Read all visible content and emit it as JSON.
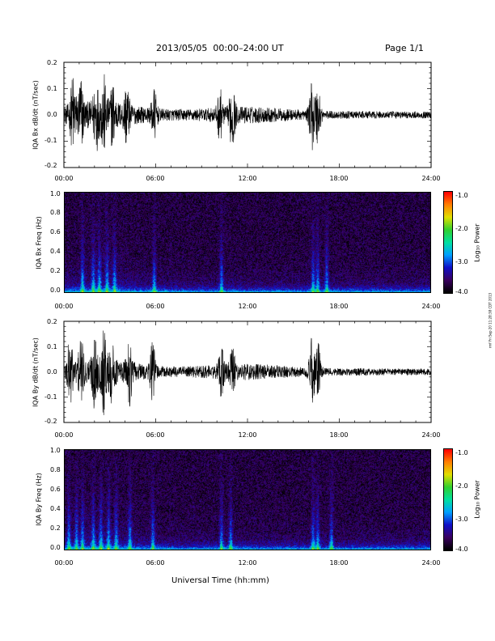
{
  "header": {
    "title": "2013/05/05  00:00–24:00 UT",
    "page": "Page 1/1"
  },
  "footer": {
    "xlabel": "Universal Time (hh:mm)",
    "stamp": "rmf Fri Sep 20 11:28:38 CDT 2013"
  },
  "colorbar": {
    "label": "Log₁₀ Power",
    "ticks": [
      "-1.0",
      "-2.0",
      "-3.0",
      "-4.0"
    ],
    "range": [
      -4.0,
      -1.0
    ],
    "colors": [
      "#000000",
      "#3a0060",
      "#1010c8",
      "#00a0ff",
      "#00e0a0",
      "#30d030",
      "#e0e000",
      "#ff8000",
      "#ff0000"
    ]
  },
  "xticks": [
    "00:00",
    "06:00",
    "12:00",
    "18:00",
    "24:00"
  ],
  "chart_data": [
    {
      "type": "line",
      "ylabel": "IQA Bx dB/dt (nT/sec)",
      "xlim": [
        0,
        24
      ],
      "ylim": [
        -0.2,
        0.2
      ],
      "yticks": [
        "0.2",
        "0.1",
        "0.0",
        "-0.1",
        "-0.2"
      ],
      "bursts": [
        {
          "t": 0.6,
          "amp": 0.22
        },
        {
          "t": 1.1,
          "amp": 0.2
        },
        {
          "t": 2.1,
          "amp": 0.18
        },
        {
          "t": 2.6,
          "amp": 0.2
        },
        {
          "t": 3.2,
          "amp": 0.16
        },
        {
          "t": 4.1,
          "amp": 0.16
        },
        {
          "t": 5.9,
          "amp": 0.15
        },
        {
          "t": 10.2,
          "amp": 0.14
        },
        {
          "t": 11.0,
          "amp": 0.2
        },
        {
          "t": 16.2,
          "amp": 0.22
        },
        {
          "t": 16.6,
          "amp": 0.2
        }
      ]
    },
    {
      "type": "heatmap",
      "ylabel": "IQA Bx Freq (Hz)",
      "xlim": [
        0,
        24
      ],
      "ylim": [
        0.0,
        1.0
      ],
      "yticks": [
        "1.0",
        "0.8",
        "0.6",
        "0.4",
        "0.2",
        "0.0"
      ],
      "zlim": [
        -4.0,
        -1.0
      ],
      "bursts": [
        1.2,
        1.9,
        2.3,
        2.8,
        3.3,
        5.9,
        10.3,
        16.3,
        16.6,
        17.2
      ]
    },
    {
      "type": "line",
      "ylabel": "IQA By dB/dt (nT/sec)",
      "xlim": [
        0,
        24
      ],
      "ylim": [
        -0.2,
        0.2
      ],
      "yticks": [
        "0.2",
        "0.1",
        "0.0",
        "-0.1",
        "-0.2"
      ],
      "bursts": [
        {
          "t": 0.4,
          "amp": 0.2
        },
        {
          "t": 1.1,
          "amp": 0.18
        },
        {
          "t": 2.0,
          "amp": 0.18
        },
        {
          "t": 2.6,
          "amp": 0.22
        },
        {
          "t": 3.1,
          "amp": 0.16
        },
        {
          "t": 4.3,
          "amp": 0.18
        },
        {
          "t": 5.8,
          "amp": 0.18
        },
        {
          "t": 10.3,
          "amp": 0.14
        },
        {
          "t": 11.0,
          "amp": 0.14
        },
        {
          "t": 16.2,
          "amp": 0.22
        },
        {
          "t": 16.6,
          "amp": 0.2
        }
      ]
    },
    {
      "type": "heatmap",
      "ylabel": "IQA By Freq (Hz)",
      "xlim": [
        0,
        24
      ],
      "ylim": [
        0.0,
        1.0
      ],
      "yticks": [
        "1.0",
        "0.8",
        "0.6",
        "0.4",
        "0.2",
        "0.0"
      ],
      "zlim": [
        -4.0,
        -1.0
      ],
      "bursts": [
        0.3,
        0.8,
        1.2,
        1.9,
        2.4,
        2.9,
        3.4,
        4.3,
        5.8,
        10.3,
        10.9,
        16.3,
        16.6,
        17.5
      ]
    }
  ]
}
